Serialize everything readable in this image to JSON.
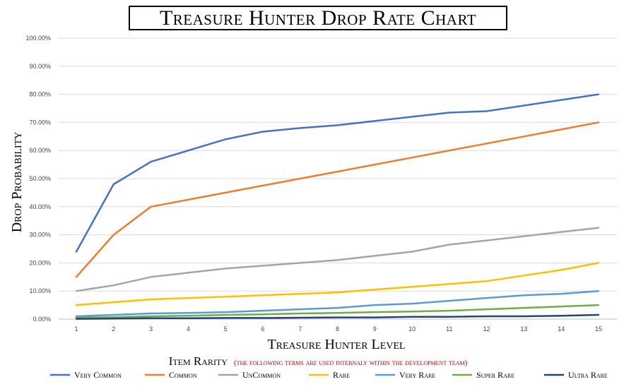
{
  "chart_data": {
    "type": "line",
    "title": "Treasure Hunter Drop Rate Chart",
    "xlabel": "Treasure Hunter Level",
    "ylabel": "Drop Probability",
    "x": [
      1,
      2,
      3,
      4,
      5,
      6,
      7,
      8,
      9,
      10,
      11,
      12,
      13,
      14,
      15
    ],
    "ylim": [
      0,
      100
    ],
    "y_ticks": [
      "0.00%",
      "10.00%",
      "20.00%",
      "30.00%",
      "40.00%",
      "50.00%",
      "60.00%",
      "70.00%",
      "80.00%",
      "90.00%",
      "100.00%"
    ],
    "grid": "horizontal",
    "legend_title": "Item Rarity",
    "legend_note": "(the following terms are used internaly within the development team)",
    "legend_position": "bottom",
    "series": [
      {
        "name": "Very Common",
        "color": "#4472c4",
        "values": [
          24,
          48,
          56,
          60,
          64,
          66.7,
          68,
          69,
          70.5,
          72,
          73.5,
          74,
          76,
          78,
          80
        ]
      },
      {
        "name": "Common",
        "color": "#ed7d31",
        "values": [
          15,
          30,
          40,
          42.5,
          45,
          47.5,
          50,
          52.5,
          55,
          57.5,
          60,
          62.5,
          65,
          67.5,
          70
        ]
      },
      {
        "name": "UnCommon",
        "color": "#a5a5a5",
        "values": [
          10,
          12,
          15,
          16.5,
          18,
          19,
          20,
          21,
          22.5,
          24,
          26.5,
          28,
          29.5,
          31,
          32.5
        ]
      },
      {
        "name": "Rare",
        "color": "#ffc000",
        "values": [
          5,
          6,
          7,
          7.5,
          8,
          8.5,
          9,
          9.5,
          10.5,
          11.5,
          12.5,
          13.5,
          15.5,
          17.5,
          20
        ]
      },
      {
        "name": "Very Rare",
        "color": "#5b9bd5",
        "values": [
          1,
          1.5,
          2,
          2.2,
          2.5,
          3,
          3.5,
          4,
          5,
          5.5,
          6.5,
          7.5,
          8.5,
          9,
          10
        ]
      },
      {
        "name": "Super Rare",
        "color": "#70ad47",
        "values": [
          0.5,
          0.7,
          1,
          1.2,
          1.5,
          1.7,
          2,
          2.2,
          2.5,
          2.7,
          3,
          3.5,
          4,
          4.5,
          5
        ]
      },
      {
        "name": "Ultra Rare",
        "color": "#264478",
        "values": [
          0.1,
          0.2,
          0.3,
          0.3,
          0.4,
          0.4,
          0.5,
          0.6,
          0.6,
          0.8,
          0.8,
          1,
          1,
          1.2,
          1.5
        ]
      }
    ]
  }
}
